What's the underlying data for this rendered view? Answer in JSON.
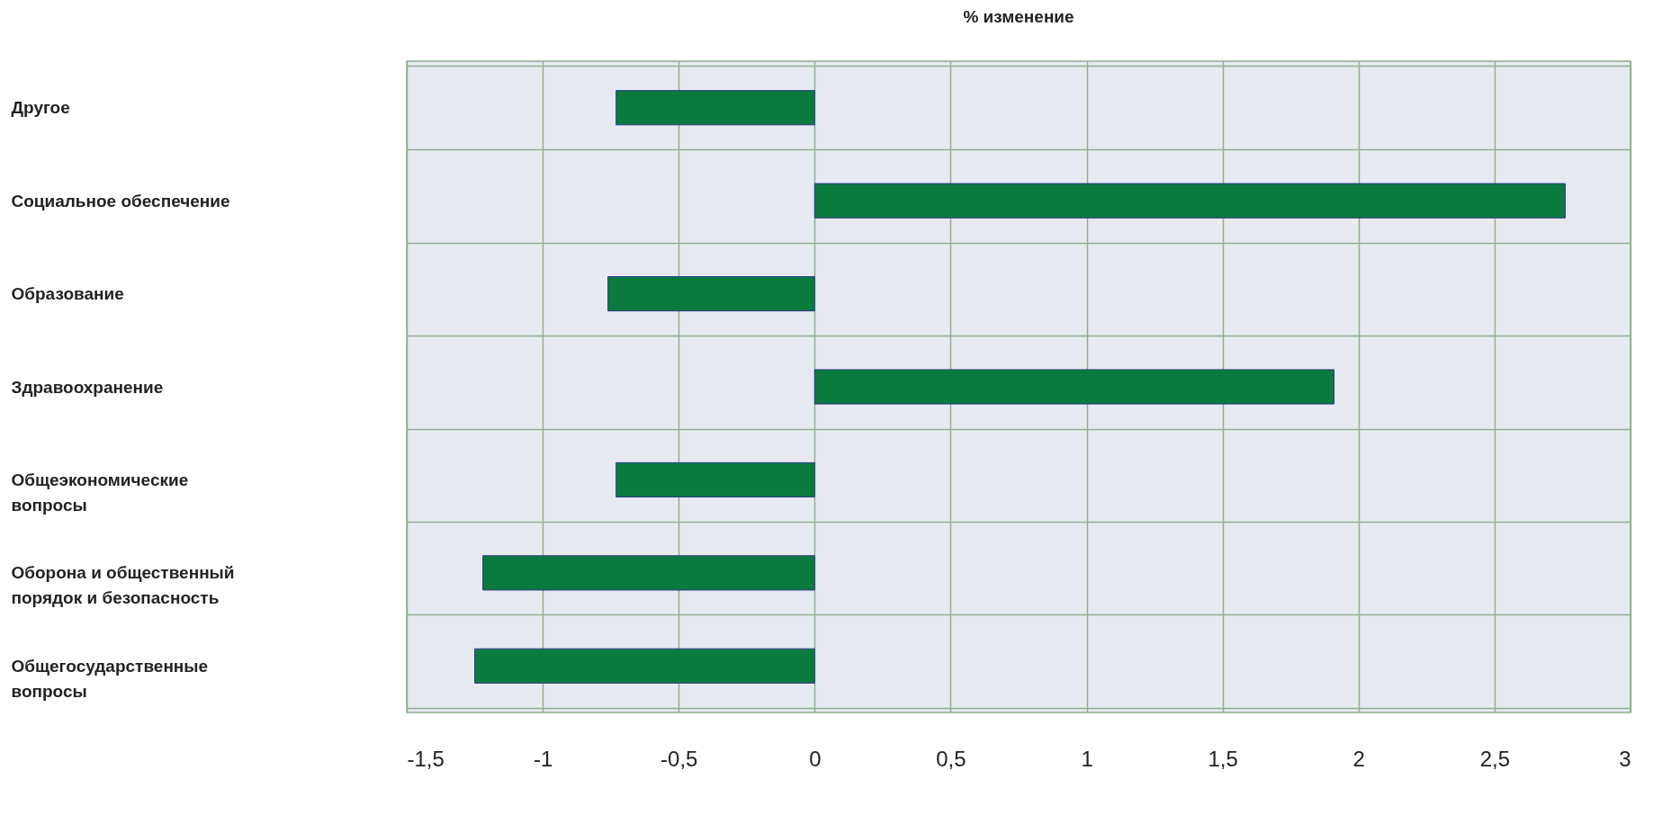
{
  "chart_data": {
    "type": "bar",
    "orientation": "horizontal",
    "title": "% изменение",
    "categories": [
      "Другое",
      "Социальное обеспечение",
      "Образование",
      "Здравоохранение",
      "Общеэкономические вопросы",
      "Оборона и общественный порядок и безопасность",
      "Общегосударственные вопросы"
    ],
    "values": [
      -0.73,
      2.76,
      -0.76,
      1.91,
      -0.73,
      -1.22,
      -1.25
    ],
    "color": "#0a7a3e",
    "xlim": [
      -1.5,
      3
    ],
    "xticks": [
      {
        "value": -1.5,
        "label": "-1,5"
      },
      -1,
      {
        "value": -0.5,
        "label": "-0,5"
      },
      0,
      {
        "value": 0.5,
        "label": "0,5"
      },
      1,
      {
        "value": 1.5,
        "label": "1,5"
      },
      2,
      {
        "value": 2.5,
        "label": "2,5"
      },
      3
    ],
    "grid": true
  }
}
